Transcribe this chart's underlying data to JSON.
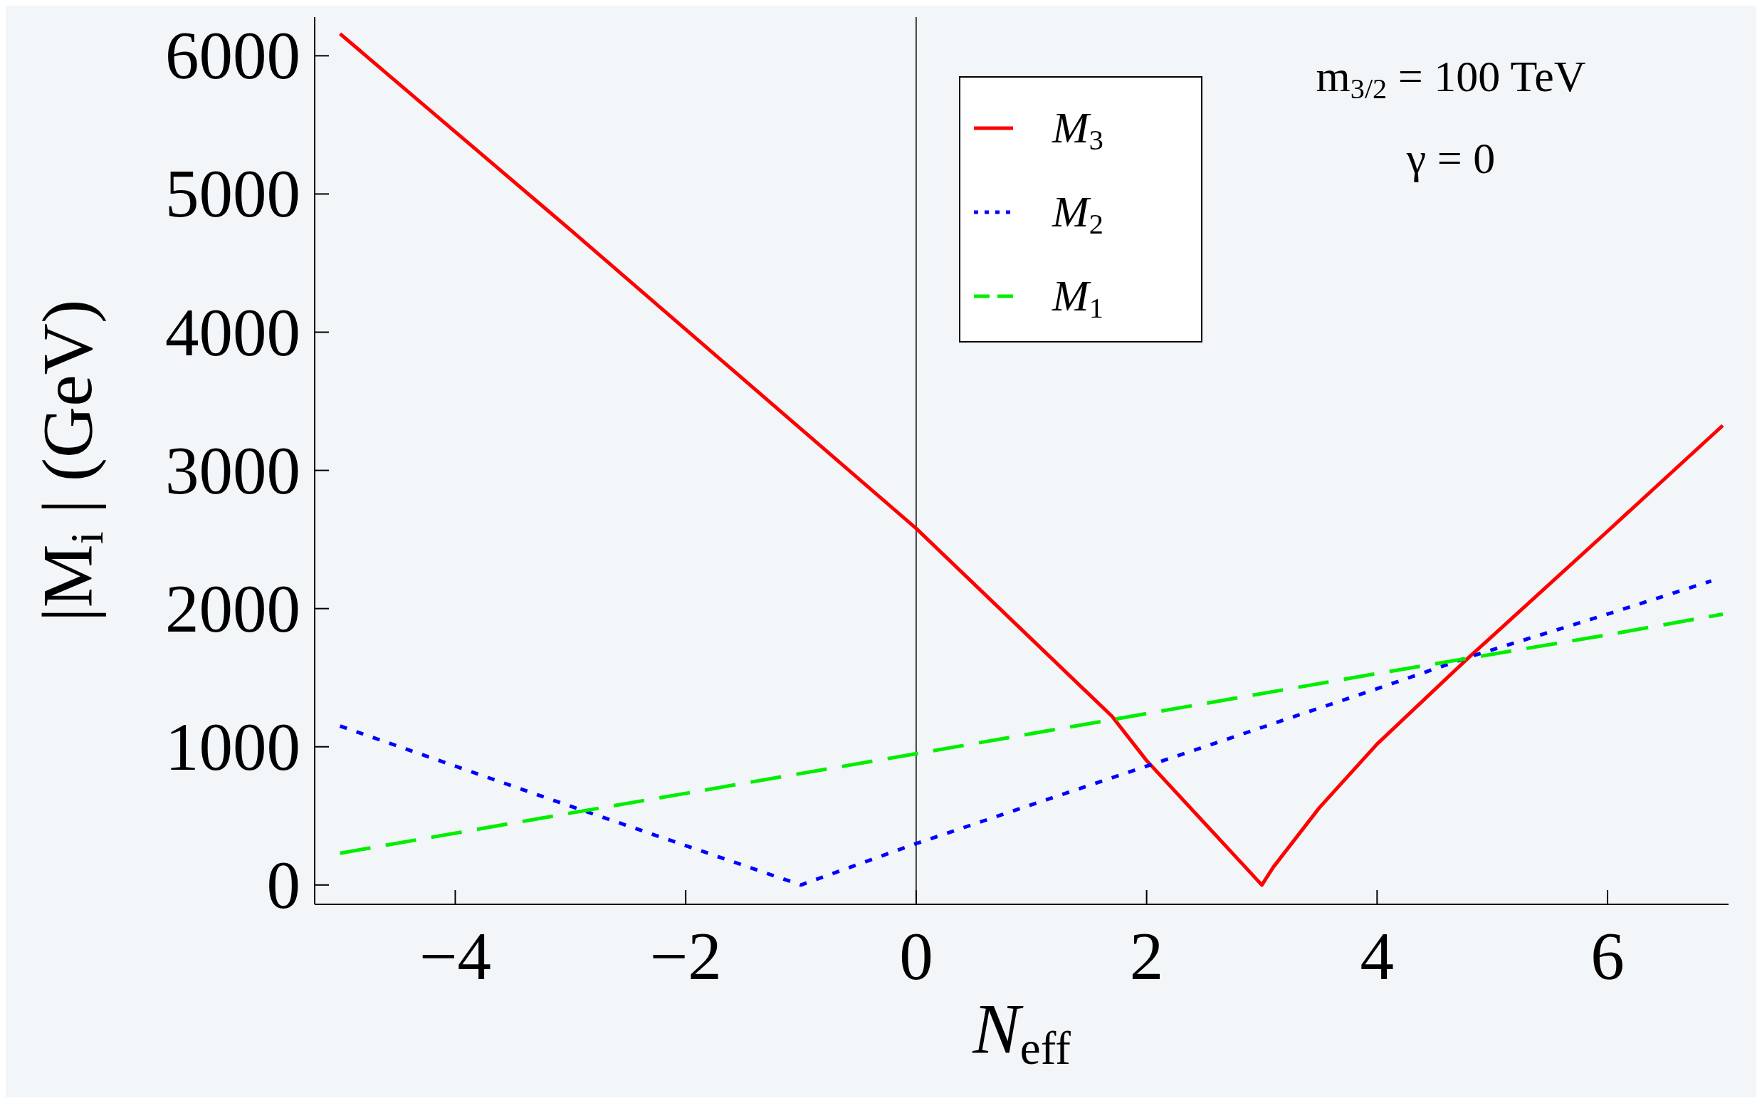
{
  "chart_data": {
    "type": "line",
    "xlabel": "N$_{eff}$",
    "ylabel": "|M$_{i}$| (GeV)",
    "xlim": [
      -5.22,
      7.05
    ],
    "ylim": [
      -140,
      6280
    ],
    "xticks": [
      {
        "value": -4,
        "label": "−4"
      },
      {
        "value": -2,
        "label": "−2"
      },
      0,
      2,
      4,
      6
    ],
    "yticks": [
      0,
      1000,
      2000,
      3000,
      4000,
      5000,
      6000
    ],
    "grid": false,
    "legend": "top",
    "marker": "none",
    "ref_lines": [
      {
        "axis": "x",
        "value": 0,
        "label": null,
        "color": "#000000"
      }
    ],
    "annotations": [
      "m$_{3/2}$ = 100 TeV",
      "γ = 0"
    ],
    "series": [
      {
        "name": "M$_{3}$",
        "color": "#ff0000",
        "line_style": "solid",
        "x": [
          -5,
          -4,
          -3,
          -2,
          -1,
          0,
          1,
          1.7,
          2,
          2.5,
          2.8,
          3,
          3.1,
          3.5,
          4,
          4.8,
          5,
          6,
          7
        ],
        "values": [
          6160,
          5450,
          4740,
          4020,
          3300,
          2580,
          1780,
          1220,
          900,
          450,
          180,
          0,
          130,
          560,
          1020,
          1650,
          1800,
          2560,
          3325
        ]
      },
      {
        "name": "M$_{2}$",
        "color": "#0000ff",
        "line_style": "dotted",
        "x": [
          -5,
          -3,
          -1,
          0,
          2,
          3,
          4,
          4.8,
          6,
          6.9
        ],
        "values": [
          1150,
          570,
          0,
          300,
          860,
          1140,
          1420,
          1650,
          1960,
          2200
        ]
      },
      {
        "name": "M$_{1}$",
        "color": "#00ee00",
        "line_style": "dashed",
        "x": [
          -5,
          -3,
          0,
          2,
          4,
          6,
          7
        ],
        "values": [
          230,
          520,
          950,
          1240,
          1530,
          1810,
          1960
        ]
      }
    ]
  }
}
